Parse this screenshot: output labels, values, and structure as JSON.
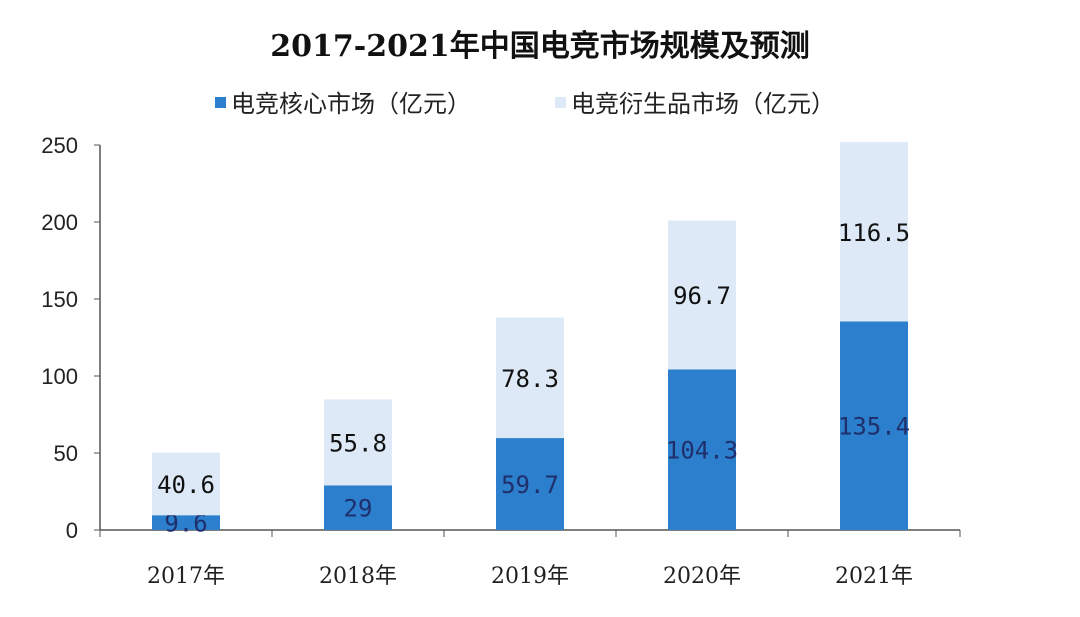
{
  "chart_data": {
    "type": "bar",
    "stacked": true,
    "title": "2017-2021年中国电竞市场规模及预测",
    "categories": [
      "2017年",
      "2018年",
      "2019年",
      "2020年",
      "2021年"
    ],
    "series": [
      {
        "name": "电竞核心市场（亿元）",
        "values": [
          9.6,
          29,
          59.7,
          104.3,
          135.4
        ],
        "labels": [
          "9.6",
          "29",
          "59.7",
          "104.3",
          "135.4"
        ],
        "color": "#2b7fcc"
      },
      {
        "name": "电竞衍生品市场（亿元）",
        "values": [
          40.6,
          55.8,
          78.3,
          96.7,
          116.5
        ],
        "labels": [
          "40.6",
          "55.8",
          "78.3",
          "96.7",
          "116.5"
        ],
        "color": "#dde9f7"
      }
    ],
    "ylim": [
      0,
      250
    ],
    "yticks": [
      "0",
      "50",
      "100",
      "150",
      "200",
      "250"
    ],
    "grid": false,
    "legend": "top"
  }
}
